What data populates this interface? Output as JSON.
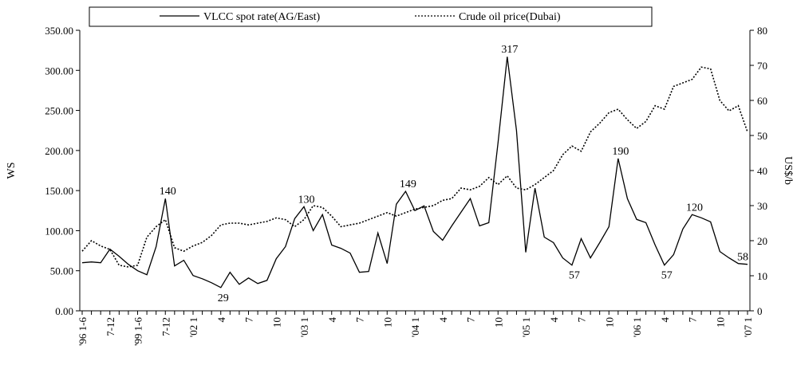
{
  "chart_data": {
    "type": "line",
    "y_label": "WS",
    "y2_label": "US$/b",
    "categories": [
      "'96 1-6",
      null,
      null,
      "7-12",
      null,
      null,
      "'99 1-6",
      null,
      null,
      "7-12",
      null,
      null,
      "'02 1",
      null,
      null,
      "4",
      null,
      null,
      "7",
      null,
      null,
      "10",
      null,
      null,
      "'03 1",
      null,
      null,
      "4",
      null,
      null,
      "7",
      null,
      null,
      "10",
      null,
      null,
      "'04 1",
      null,
      null,
      "4",
      null,
      null,
      "7",
      null,
      null,
      "10",
      null,
      null,
      "'05 1",
      null,
      null,
      "4",
      null,
      null,
      "7",
      null,
      null,
      "10",
      null,
      null,
      "'06 1",
      null,
      null,
      "4",
      null,
      null,
      "7",
      null,
      null,
      "10",
      null,
      null,
      "'07 1"
    ],
    "series": [
      {
        "name": "VLCC spot rate(AG/East)",
        "color": "#000000",
        "dash": "solid",
        "axis": "y",
        "values": [
          60,
          61,
          60,
          77,
          68,
          58,
          50,
          45,
          80,
          140,
          56,
          63,
          44,
          40,
          35,
          29,
          48,
          33,
          41,
          34,
          38,
          65,
          80,
          115,
          130,
          100,
          120,
          82,
          78,
          72,
          48,
          49,
          97,
          59,
          133,
          149,
          125,
          131,
          99,
          88,
          106,
          123,
          140,
          106,
          110,
          210,
          317,
          225,
          73,
          153,
          92,
          85,
          66,
          57,
          90,
          66,
          85,
          105,
          190,
          140,
          114,
          110,
          82,
          57,
          70,
          102,
          120,
          116,
          111,
          74,
          66,
          59,
          58
        ],
        "value_labels": [
          null,
          null,
          null,
          null,
          null,
          null,
          null,
          null,
          null,
          "140",
          null,
          null,
          null,
          null,
          null,
          "29",
          null,
          null,
          null,
          null,
          null,
          null,
          null,
          null,
          "130",
          null,
          null,
          null,
          null,
          null,
          null,
          null,
          null,
          null,
          null,
          "149",
          null,
          null,
          null,
          null,
          null,
          null,
          null,
          null,
          null,
          null,
          "317",
          null,
          null,
          null,
          null,
          null,
          null,
          "57",
          null,
          null,
          null,
          null,
          "190",
          null,
          null,
          null,
          null,
          "57",
          null,
          null,
          "120",
          null,
          null,
          null,
          null,
          null,
          "58"
        ]
      },
      {
        "name": "Crude oil price(Dubai)",
        "color": "#000000",
        "dash": "dotted",
        "axis": "y2",
        "values": [
          17,
          20,
          18.5,
          17.5,
          13,
          12.5,
          13,
          21,
          24,
          26,
          18,
          17,
          18.5,
          19.5,
          21.5,
          24.5,
          25,
          25,
          24.5,
          25,
          25.5,
          26.5,
          26,
          24,
          26,
          30,
          29.5,
          27,
          24,
          24.5,
          25,
          26,
          27,
          28,
          27,
          28,
          29,
          29.5,
          30,
          31.5,
          32,
          35,
          34.5,
          35.5,
          38,
          36,
          38.5,
          35,
          34.5,
          36,
          38,
          40,
          44.5,
          47,
          45.5,
          51,
          53.5,
          56.5,
          57.5,
          54.5,
          52,
          54,
          58.5,
          57.5,
          64,
          65,
          66,
          69.5,
          69,
          60,
          57,
          58.5,
          51
        ]
      }
    ],
    "ylim": [
      0,
      350
    ],
    "yticks": [
      {
        "value": 0,
        "label": "0.00"
      },
      {
        "value": 50,
        "label": "50.00"
      },
      {
        "value": 100,
        "label": "100.00"
      },
      {
        "value": 150,
        "label": "150.00"
      },
      {
        "value": 200,
        "label": "200.00"
      },
      {
        "value": 250,
        "label": "250.00"
      },
      {
        "value": 300,
        "label": "300.00"
      },
      {
        "value": 350,
        "label": "350.00"
      }
    ],
    "y2lim": [
      0,
      80
    ],
    "y2ticks": [
      0,
      10,
      20,
      30,
      40,
      50,
      60,
      70,
      80
    ],
    "grid": false
  }
}
